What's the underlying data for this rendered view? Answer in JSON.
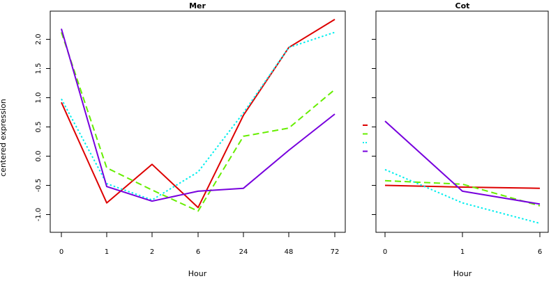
{
  "chart_data": [
    {
      "type": "line",
      "title": "Mer",
      "xlabel": "Hour",
      "ylabel": "centered expression",
      "categories": [
        "0",
        "1",
        "2",
        "6",
        "24",
        "48",
        "72"
      ],
      "ylim": [
        -1.2,
        2.4
      ],
      "yticks": [
        "-1.0",
        "-0.5",
        "0.0",
        "0.5",
        "1.0",
        "1.5",
        "2.0"
      ],
      "grid": false,
      "series": [
        {
          "color": "#dd0000",
          "dash": "solid",
          "values": [
            0.92,
            -0.8,
            -0.14,
            -0.88,
            0.7,
            1.86,
            2.34
          ]
        },
        {
          "color": "#66ee00",
          "dash": "dashed",
          "values": [
            2.12,
            -0.2,
            -0.58,
            -0.94,
            0.34,
            0.48,
            1.14
          ]
        },
        {
          "color": "#00eeee",
          "dash": "dotted",
          "values": [
            0.98,
            -0.47,
            -0.75,
            -0.27,
            0.74,
            1.86,
            2.12
          ]
        },
        {
          "color": "#7700dd",
          "dash": "solid",
          "values": [
            2.18,
            -0.52,
            -0.77,
            -0.6,
            -0.55,
            0.1,
            0.72
          ]
        }
      ]
    },
    {
      "type": "line",
      "title": "Cot",
      "xlabel": "Hour",
      "ylabel": "",
      "categories": [
        "0",
        "1",
        "6"
      ],
      "ylim": [
        -1.2,
        2.4
      ],
      "yticks": [],
      "grid": false,
      "series": [
        {
          "color": "#dd0000",
          "dash": "solid",
          "values": [
            -0.5,
            -0.53,
            -0.55
          ]
        },
        {
          "color": "#66ee00",
          "dash": "dashed",
          "values": [
            -0.42,
            -0.48,
            -0.85
          ]
        },
        {
          "color": "#00eeee",
          "dash": "dotted",
          "values": [
            -0.23,
            -0.8,
            -1.15
          ]
        },
        {
          "color": "#7700dd",
          "dash": "solid",
          "values": [
            0.6,
            -0.6,
            -0.82
          ]
        }
      ]
    }
  ],
  "legend": {
    "placement": "between-panels",
    "entries": [
      {
        "color": "#dd0000",
        "dash": "solid"
      },
      {
        "color": "#66ee00",
        "dash": "dashed"
      },
      {
        "color": "#00eeee",
        "dash": "dotted"
      },
      {
        "color": "#7700dd",
        "dash": "solid"
      }
    ]
  }
}
